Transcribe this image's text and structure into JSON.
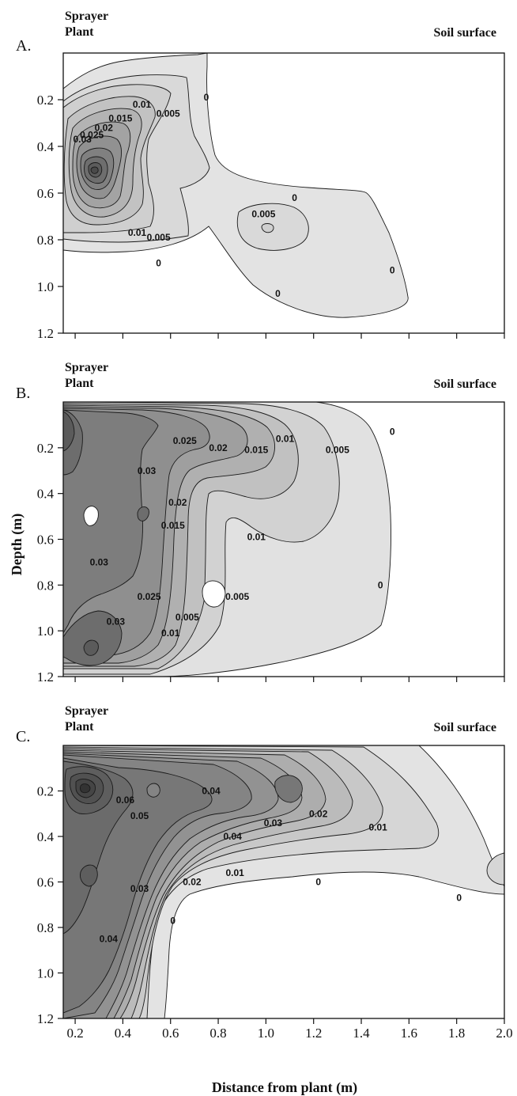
{
  "figure": {
    "xlabel": "Distance from plant (m)",
    "ylabel": "Depth (m)"
  },
  "chart_data": [
    {
      "type": "contour",
      "panel": "A.",
      "header_left_line1": "Sprayer",
      "header_left_line2": "Plant",
      "header_right": "Soil surface",
      "xlim": [
        0.15,
        2.0
      ],
      "ylim": [
        1.2,
        0.0
      ],
      "x_ticks": [
        0.2,
        0.4,
        0.6,
        0.8,
        1.0,
        1.2,
        1.4,
        1.6,
        1.8,
        2.0
      ],
      "y_ticks": [
        0.2,
        0.4,
        0.6,
        0.8,
        1.0,
        1.2
      ],
      "y_tick_labels": [
        "0.2",
        "0.4",
        "0.6",
        "0.8",
        "1.0",
        "1.2"
      ],
      "contour_levels": [
        0,
        0.005,
        0.01,
        0.015,
        0.02,
        0.025,
        0.03
      ],
      "contour_labels": [
        {
          "text": "0",
          "x": 0.75,
          "y": 0.19
        },
        {
          "text": "0.005",
          "x": 0.59,
          "y": 0.26
        },
        {
          "text": "0.01",
          "x": 0.48,
          "y": 0.22
        },
        {
          "text": "0.015",
          "x": 0.39,
          "y": 0.28
        },
        {
          "text": "0.02",
          "x": 0.32,
          "y": 0.32
        },
        {
          "text": "0.025",
          "x": 0.27,
          "y": 0.35
        },
        {
          "text": "0.03",
          "x": 0.23,
          "y": 0.37
        },
        {
          "text": "0",
          "x": 1.12,
          "y": 0.62
        },
        {
          "text": "0.005",
          "x": 0.99,
          "y": 0.69
        },
        {
          "text": "0.01",
          "x": 0.46,
          "y": 0.77
        },
        {
          "text": "0.005",
          "x": 0.55,
          "y": 0.79
        },
        {
          "text": "0",
          "x": 0.55,
          "y": 0.9
        },
        {
          "text": "0",
          "x": 1.05,
          "y": 1.03
        },
        {
          "text": "0",
          "x": 1.53,
          "y": 0.93
        }
      ]
    },
    {
      "type": "contour",
      "panel": "B.",
      "header_left_line1": "Sprayer",
      "header_left_line2": "Plant",
      "header_right": "Soil surface",
      "xlim": [
        0.15,
        2.0
      ],
      "ylim": [
        1.2,
        0.0
      ],
      "x_ticks": [
        0.2,
        0.4,
        0.6,
        0.8,
        1.0,
        1.2,
        1.4,
        1.6,
        1.8,
        2.0
      ],
      "y_ticks": [
        0.2,
        0.4,
        0.6,
        0.8,
        1.0,
        1.2
      ],
      "y_tick_labels": [
        "0.2",
        "0.4",
        "0.6",
        "0.8",
        "1.0",
        "1.2"
      ],
      "contour_levels": [
        0,
        0.005,
        0.01,
        0.015,
        0.02,
        0.025,
        0.03
      ],
      "contour_labels": [
        {
          "text": "0.025",
          "x": 0.66,
          "y": 0.17
        },
        {
          "text": "0.02",
          "x": 0.8,
          "y": 0.2
        },
        {
          "text": "0.015",
          "x": 0.96,
          "y": 0.21
        },
        {
          "text": "0.01",
          "x": 1.08,
          "y": 0.16
        },
        {
          "text": "0.005",
          "x": 1.3,
          "y": 0.21
        },
        {
          "text": "0",
          "x": 1.53,
          "y": 0.13
        },
        {
          "text": "0.03",
          "x": 0.5,
          "y": 0.3
        },
        {
          "text": "0.02",
          "x": 0.63,
          "y": 0.44
        },
        {
          "text": "0.015",
          "x": 0.61,
          "y": 0.54
        },
        {
          "text": "0.01",
          "x": 0.96,
          "y": 0.59
        },
        {
          "text": "0.03",
          "x": 0.3,
          "y": 0.7
        },
        {
          "text": "0.025",
          "x": 0.51,
          "y": 0.85
        },
        {
          "text": "0.03",
          "x": 0.37,
          "y": 0.96
        },
        {
          "text": "0.005",
          "x": 0.88,
          "y": 0.85
        },
        {
          "text": "0.005",
          "x": 0.67,
          "y": 0.94
        },
        {
          "text": "0.01",
          "x": 0.6,
          "y": 1.01
        },
        {
          "text": "0",
          "x": 1.48,
          "y": 0.8
        }
      ]
    },
    {
      "type": "contour",
      "panel": "C.",
      "header_left_line1": "Sprayer",
      "header_left_line2": "Plant",
      "header_right": "Soil surface",
      "xlim": [
        0.15,
        2.0
      ],
      "ylim": [
        1.2,
        0.0
      ],
      "x_ticks": [
        0.2,
        0.4,
        0.6,
        0.8,
        1.0,
        1.2,
        1.4,
        1.6,
        1.8,
        2.0
      ],
      "x_tick_labels": [
        "0.2",
        "0.4",
        "0.6",
        "0.8",
        "1.0",
        "1.2",
        "1.4",
        "1.6",
        "1.8",
        "2.0"
      ],
      "y_ticks": [
        0.2,
        0.4,
        0.6,
        0.8,
        1.0,
        1.2
      ],
      "y_tick_labels": [
        "0.2",
        "0.4",
        "0.6",
        "0.8",
        "1.0",
        "1.2"
      ],
      "contour_levels": [
        0,
        0.01,
        0.02,
        0.03,
        0.04,
        0.05,
        0.06
      ],
      "contour_labels": [
        {
          "text": "0.04",
          "x": 0.77,
          "y": 0.2
        },
        {
          "text": "0.06",
          "x": 0.41,
          "y": 0.24
        },
        {
          "text": "0.05",
          "x": 0.47,
          "y": 0.31
        },
        {
          "text": "0.04",
          "x": 0.86,
          "y": 0.4
        },
        {
          "text": "0.03",
          "x": 1.03,
          "y": 0.34
        },
        {
          "text": "0.02",
          "x": 1.22,
          "y": 0.3
        },
        {
          "text": "0.01",
          "x": 1.47,
          "y": 0.36
        },
        {
          "text": "0.01",
          "x": 0.87,
          "y": 0.56
        },
        {
          "text": "0.02",
          "x": 0.69,
          "y": 0.6
        },
        {
          "text": "0.03",
          "x": 0.47,
          "y": 0.63
        },
        {
          "text": "0",
          "x": 1.22,
          "y": 0.6
        },
        {
          "text": "0",
          "x": 1.81,
          "y": 0.67
        },
        {
          "text": "0",
          "x": 0.61,
          "y": 0.77
        },
        {
          "text": "0.04",
          "x": 0.34,
          "y": 0.85
        }
      ]
    }
  ]
}
